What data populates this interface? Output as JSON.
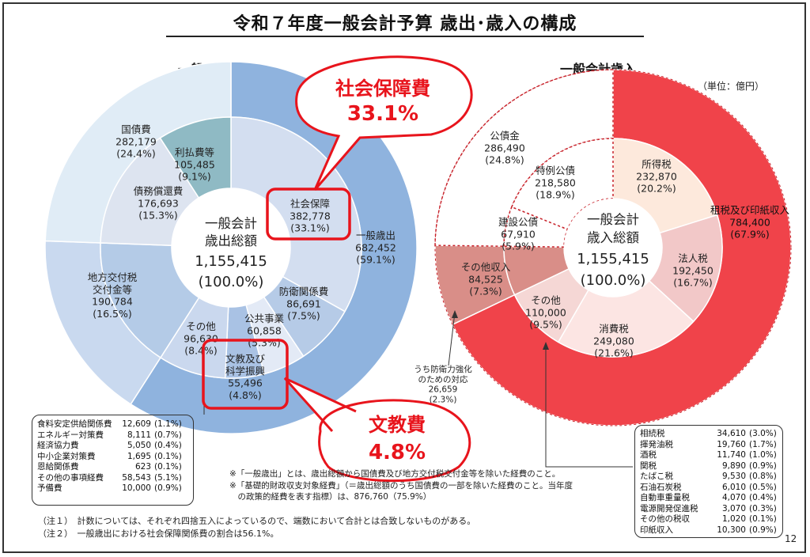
{
  "page": {
    "title": "令和７年度一般会計予算 歳出･歳入の構成",
    "page_number": "12",
    "unit": "（単位：億円）",
    "callouts": {
      "expenditure_social": [
        "社会保障費",
        "33.1%"
      ],
      "expenditure_education": [
        "文教費",
        "4.8%"
      ]
    },
    "colors": {
      "expenditure": "#8fb3de",
      "revenue": "#f0434a",
      "callout": "#e8141c"
    }
  },
  "chart_data": [
    {
      "type": "pie",
      "title": "一般会計歳出",
      "center": [
        "一般会計",
        "歳出総額",
        "1,155,415",
        "(100.0%)"
      ],
      "outer": [
        {
          "label": "一般歳出",
          "value": 682452,
          "percent": "59.1%"
        },
        {
          "label": "地方交付税交付金等",
          "value": 190784,
          "percent": "16.5%"
        },
        {
          "label": "国債費",
          "value": 282179,
          "percent": "24.4%"
        }
      ],
      "inner": [
        {
          "label": "社会保障",
          "value": 382778,
          "percent": "33.1%"
        },
        {
          "label": "防衛関係費",
          "value": 86691,
          "percent": "7.5%"
        },
        {
          "label": "公共事業",
          "value": 60858,
          "percent": "5.3%"
        },
        {
          "label": "文教及び科学振興",
          "value": 55496,
          "percent": "4.8%"
        },
        {
          "label": "その他",
          "value": 96630,
          "percent": "8.4%"
        },
        {
          "label": "地方交付税交付金等",
          "value": 190784,
          "percent": "16.5%"
        },
        {
          "label": "債務償還費",
          "value": 176693,
          "percent": "15.3%"
        },
        {
          "label": "利払費等",
          "value": 105485,
          "percent": "9.1%"
        }
      ],
      "other_breakdown": [
        {
          "label": "食料安定供給関係費",
          "value": "12,609",
          "percent": "(1.1%)"
        },
        {
          "label": "エネルギー対策費",
          "value": "8,111",
          "percent": "(0.7%)"
        },
        {
          "label": "経済協力費",
          "value": "5,050",
          "percent": "(0.4%)"
        },
        {
          "label": "中小企業対策費",
          "value": "1,695",
          "percent": "(0.1%)"
        },
        {
          "label": "恩給関係費",
          "value": "623",
          "percent": "(0.1%)"
        },
        {
          "label": "その他の事項経費",
          "value": "58,543",
          "percent": "(5.1%)"
        },
        {
          "label": "予備費",
          "value": "10,000",
          "percent": "(0.9%)"
        }
      ]
    },
    {
      "type": "pie",
      "title": "一般会計歳入",
      "center": [
        "一般会計",
        "歳入総額",
        "1,155,415",
        "(100.0%)"
      ],
      "outer": [
        {
          "label": "租税及び印紙収入",
          "value": 784400,
          "percent": "67.9%"
        },
        {
          "label": "その他収入",
          "value": 84525,
          "percent": "7.3%"
        },
        {
          "label": "公債金",
          "value": 286490,
          "percent": "24.8%"
        }
      ],
      "inner": [
        {
          "label": "所得税",
          "value": 232870,
          "percent": "20.2%"
        },
        {
          "label": "法人税",
          "value": 192450,
          "percent": "16.7%"
        },
        {
          "label": "消費税",
          "value": 249080,
          "percent": "21.6%"
        },
        {
          "label": "その他",
          "value": 110000,
          "percent": "9.5%"
        },
        {
          "label": "その他収入",
          "value": 84525,
          "percent": "7.3%"
        },
        {
          "label": "建設公債",
          "value": 67910,
          "percent": "5.9%"
        },
        {
          "label": "特例公債",
          "value": 218580,
          "percent": "18.9%"
        }
      ],
      "annotation": [
        "うち防衛力強化",
        "のための対応",
        "26,659",
        "(2.3%)"
      ],
      "other_tax_breakdown": [
        {
          "label": "相続税",
          "value": "34,610",
          "percent": "(3.0%)"
        },
        {
          "label": "揮発油税",
          "value": "19,760",
          "percent": "(1.7%)"
        },
        {
          "label": "酒税",
          "value": "11,740",
          "percent": "(1.0%)"
        },
        {
          "label": "関税",
          "value": "9,890",
          "percent": "(0.9%)"
        },
        {
          "label": "たばこ税",
          "value": "9,530",
          "percent": "(0.8%)"
        },
        {
          "label": "石油石炭税",
          "value": "6,010",
          "percent": "(0.5%)"
        },
        {
          "label": "自動車重量税",
          "value": "4,070",
          "percent": "(0.4%)"
        },
        {
          "label": "電源開発促進税",
          "value": "3,070",
          "percent": "(0.3%)"
        },
        {
          "label": "その他の税収",
          "value": "1,020",
          "percent": "(0.1%)"
        },
        {
          "label": "印紙収入",
          "value": "10,300",
          "percent": "(0.9%)"
        }
      ]
    }
  ],
  "notes": {
    "general": [
      "※「一般歳出」とは、歳出総額から国債費及び地方交付税交付金等を除いた経費のこと。",
      "※「基礎的財政収支対象経費」（＝歳出総額のうち国債費の一部を除いた経費のこと。当年度",
      "　の政策的経費を表す指標）は、876,760（75.9%）"
    ],
    "footnotes": [
      "（注１）　計数については、それぞれ四捨五入によっているので、端数において合計とは合致しないものがある。",
      "（注２）　一般歳出における社会保障関係費の割合は56.1%。"
    ]
  }
}
